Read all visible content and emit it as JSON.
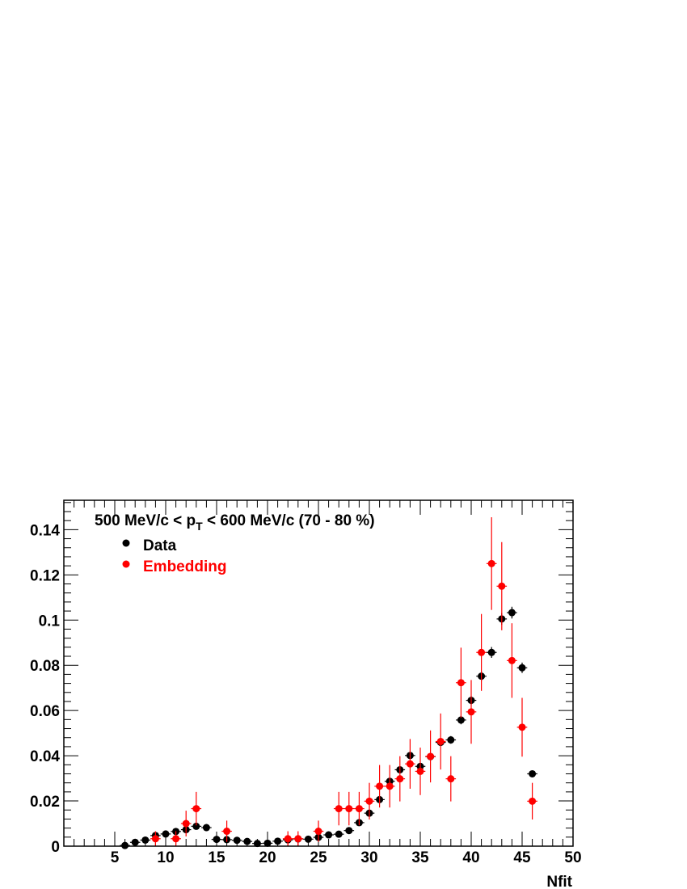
{
  "chart_data": {
    "type": "scatter",
    "title_main": "500 MeV/c < p",
    "title_sub": "T",
    "title_rest": " < 600 MeV/c (70 - 80 %)",
    "xlabel": "Nfit",
    "ylabel": "",
    "xlim": [
      0,
      50
    ],
    "ylim": [
      0,
      0.153
    ],
    "x_ticks": [
      5,
      10,
      15,
      20,
      25,
      30,
      35,
      40,
      45,
      50
    ],
    "y_ticks": [
      "0",
      "0.02",
      "0.04",
      "0.06",
      "0.08",
      "0.1",
      "0.12",
      "0.14"
    ],
    "grid": false,
    "legend_position": "top-left",
    "series": [
      {
        "name": "Data",
        "color": "#000000",
        "x": [
          6,
          7,
          8,
          9,
          10,
          11,
          12,
          13,
          14,
          15,
          16,
          17,
          18,
          19,
          20,
          21,
          22,
          23,
          24,
          25,
          26,
          27,
          28,
          29,
          30,
          31,
          32,
          33,
          34,
          35,
          36,
          37,
          38,
          39,
          40,
          41,
          42,
          43,
          44,
          45,
          46
        ],
        "y": [
          0.0003,
          0.0017,
          0.0027,
          0.0047,
          0.0054,
          0.0065,
          0.0073,
          0.0088,
          0.0082,
          0.003,
          0.0029,
          0.0026,
          0.0021,
          0.0012,
          0.0013,
          0.0022,
          0.0028,
          0.0032,
          0.0031,
          0.0039,
          0.005,
          0.0053,
          0.0069,
          0.0104,
          0.0146,
          0.0206,
          0.0287,
          0.0338,
          0.0401,
          0.0353,
          0.0396,
          0.0459,
          0.047,
          0.0558,
          0.0645,
          0.0752,
          0.0857,
          0.1005,
          0.1033,
          0.0789,
          0.032
        ],
        "yerr": [
          0.0002,
          0.0004,
          0.0005,
          0.0006,
          0.0006,
          0.0007,
          0.0007,
          0.0008,
          0.0008,
          0.0005,
          0.0005,
          0.0005,
          0.0004,
          0.0003,
          0.0003,
          0.0004,
          0.0005,
          0.0005,
          0.0005,
          0.0006,
          0.0006,
          0.0006,
          0.0007,
          0.0008,
          0.001,
          0.0012,
          0.0014,
          0.0015,
          0.0016,
          0.0015,
          0.0016,
          0.0017,
          0.0017,
          0.0019,
          0.002,
          0.0022,
          0.0024,
          0.0026,
          0.0026,
          0.0023,
          0.0015
        ]
      },
      {
        "name": "Embedding",
        "color": "#ff0000",
        "x": [
          9,
          11,
          12,
          13,
          16,
          22,
          23,
          25,
          27,
          28,
          29,
          30,
          31,
          32,
          33,
          34,
          35,
          36,
          37,
          38,
          39,
          40,
          41,
          42,
          43,
          44,
          45,
          46
        ],
        "y": [
          0.0033,
          0.0033,
          0.01,
          0.0166,
          0.0066,
          0.0033,
          0.0033,
          0.0066,
          0.0166,
          0.0166,
          0.0166,
          0.0199,
          0.0265,
          0.0265,
          0.0298,
          0.0364,
          0.0331,
          0.0397,
          0.0463,
          0.0298,
          0.0723,
          0.0594,
          0.0857,
          0.125,
          0.115,
          0.0821,
          0.0526,
          0.0199
        ],
        "yerr": [
          0.0033,
          0.0033,
          0.0057,
          0.0074,
          0.0047,
          0.0033,
          0.0033,
          0.0047,
          0.0074,
          0.0074,
          0.0074,
          0.0081,
          0.0094,
          0.0094,
          0.01,
          0.011,
          0.0105,
          0.0115,
          0.0124,
          0.01,
          0.0155,
          0.0141,
          0.017,
          0.0205,
          0.0195,
          0.0165,
          0.013,
          0.0081
        ]
      }
    ]
  }
}
